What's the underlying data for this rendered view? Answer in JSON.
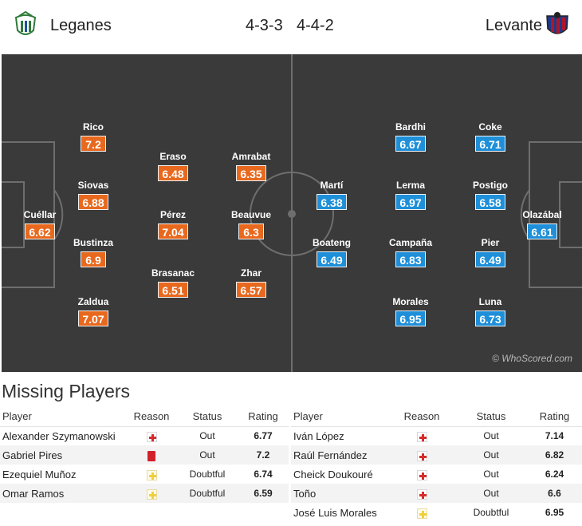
{
  "header": {
    "home_team": "Leganes",
    "away_team": "Levante",
    "home_formation": "4-3-3",
    "away_formation": "4-4-2",
    "home_crest_icon": "leganes-crest-icon",
    "away_crest_icon": "levante-crest-icon"
  },
  "colors": {
    "home_rating": "#e8691e",
    "away_rating": "#1e8fd8",
    "pitch": "#3a3a3a"
  },
  "pitch": {
    "watermark": "© WhoScored.com",
    "home_players": [
      {
        "name": "Cuéllar",
        "rating": "6.62"
      },
      {
        "name": "Rico",
        "rating": "7.2"
      },
      {
        "name": "Siovas",
        "rating": "6.88"
      },
      {
        "name": "Bustinza",
        "rating": "6.9"
      },
      {
        "name": "Zaldua",
        "rating": "7.07"
      },
      {
        "name": "Eraso",
        "rating": "6.48"
      },
      {
        "name": "Pérez",
        "rating": "7.04"
      },
      {
        "name": "Brasanac",
        "rating": "6.51"
      },
      {
        "name": "Amrabat",
        "rating": "6.35"
      },
      {
        "name": "Beauvue",
        "rating": "6.3"
      },
      {
        "name": "Zhar",
        "rating": "6.57"
      }
    ],
    "away_players": [
      {
        "name": "Olazábal",
        "rating": "6.61"
      },
      {
        "name": "Coke",
        "rating": "6.71"
      },
      {
        "name": "Postigo",
        "rating": "6.58"
      },
      {
        "name": "Pier",
        "rating": "6.49"
      },
      {
        "name": "Luna",
        "rating": "6.73"
      },
      {
        "name": "Bardhi",
        "rating": "6.67"
      },
      {
        "name": "Lerma",
        "rating": "6.97"
      },
      {
        "name": "Campaña",
        "rating": "6.83"
      },
      {
        "name": "Morales",
        "rating": "6.95"
      },
      {
        "name": "Martí",
        "rating": "6.38"
      },
      {
        "name": "Boateng",
        "rating": "6.49"
      }
    ]
  },
  "missing": {
    "title": "Missing Players",
    "columns": {
      "player": "Player",
      "reason": "Reason",
      "status": "Status",
      "rating": "Rating"
    },
    "home": [
      {
        "player": "Alexander Szymanowski",
        "reason": "injury",
        "status": "Out",
        "rating": "6.77"
      },
      {
        "player": "Gabriel Pires",
        "reason": "red-card",
        "status": "Out",
        "rating": "7.2"
      },
      {
        "player": "Ezequiel Muñoz",
        "reason": "doubtful",
        "status": "Doubtful",
        "rating": "6.74"
      },
      {
        "player": "Omar Ramos",
        "reason": "doubtful",
        "status": "Doubtful",
        "rating": "6.59"
      }
    ],
    "away": [
      {
        "player": "Iván López",
        "reason": "injury",
        "status": "Out",
        "rating": "7.14"
      },
      {
        "player": "Raúl Fernández",
        "reason": "injury",
        "status": "Out",
        "rating": "6.82"
      },
      {
        "player": "Cheick Doukouré",
        "reason": "injury",
        "status": "Out",
        "rating": "6.24"
      },
      {
        "player": "Toño",
        "reason": "injury",
        "status": "Out",
        "rating": "6.6"
      },
      {
        "player": "José Luis Morales",
        "reason": "doubtful",
        "status": "Doubtful",
        "rating": "6.95"
      }
    ]
  }
}
